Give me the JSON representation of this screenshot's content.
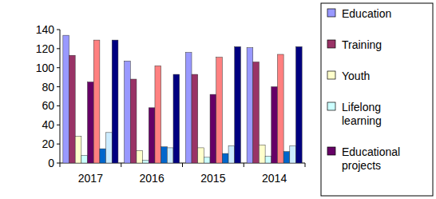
{
  "chart_data": {
    "type": "bar",
    "categories": [
      "2017",
      "2016",
      "2015",
      "2014"
    ],
    "series": [
      {
        "name": "Education",
        "color": "#9999ff",
        "values": [
          134,
          107,
          116,
          121
        ]
      },
      {
        "name": "Training",
        "color": "#993366",
        "values": [
          113,
          88,
          93,
          106
        ]
      },
      {
        "name": "Youth",
        "color": "#ffffcc",
        "values": [
          28,
          13,
          16,
          19
        ]
      },
      {
        "name": "Lifelong learning",
        "color": "#ccffff",
        "values": [
          8,
          3,
          6,
          7
        ]
      },
      {
        "name": "Educational projects",
        "color": "#660066",
        "values": [
          85,
          58,
          72,
          80
        ]
      },
      {
        "color": "#ff8080",
        "values": [
          129,
          102,
          111,
          114
        ]
      },
      {
        "color": "#0066cc",
        "values": [
          15,
          17,
          10,
          12
        ]
      },
      {
        "color": "#ccecff",
        "values": [
          32,
          16,
          18,
          18
        ]
      },
      {
        "color": "#000080",
        "values": [
          129,
          93,
          122,
          122
        ]
      }
    ],
    "ylim": [
      0,
      140
    ],
    "yticks": [
      0,
      20,
      40,
      60,
      80,
      100,
      120,
      140
    ],
    "grid": false,
    "legend": "right"
  }
}
